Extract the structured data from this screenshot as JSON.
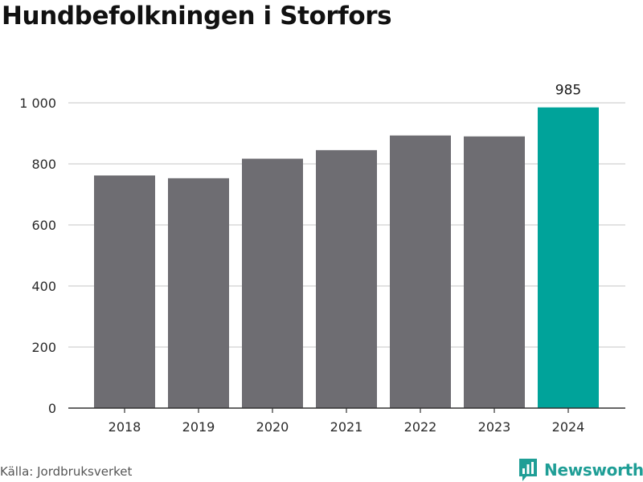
{
  "title": "Hundbefolkningen i Storfors",
  "source": "Källa: Jordbruksverket",
  "brand": {
    "name": "Newsworthy",
    "icon": "newsworthy-logo-icon",
    "color": "#1f9e96"
  },
  "colors": {
    "bar": "#6e6d72",
    "highlight": "#00a39a",
    "grid": "#d9d9d9",
    "axis": "#333333"
  },
  "chart_data": {
    "type": "bar",
    "title": "Hundbefolkningen i Storfors",
    "xlabel": "",
    "ylabel": "",
    "categories": [
      "2018",
      "2019",
      "2020",
      "2021",
      "2022",
      "2023",
      "2024"
    ],
    "values": [
      762,
      753,
      817,
      845,
      893,
      890,
      985
    ],
    "highlight_index": 6,
    "highlight_label": "985",
    "ylim": [
      0,
      1000
    ],
    "yticks": [
      0,
      200,
      400,
      600,
      800,
      1000
    ],
    "ytick_labels": [
      "0",
      "200",
      "400",
      "600",
      "800",
      "1 000"
    ],
    "grid": true
  }
}
